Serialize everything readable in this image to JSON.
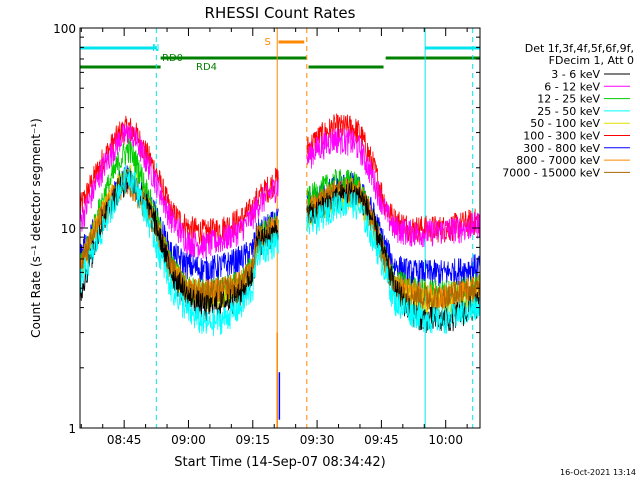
{
  "chart_data": {
    "type": "line",
    "title": "RHESSI Count Rates",
    "xlabel": "Start Time (14-Sep-07 08:34:42)",
    "ylabel": "Count Rate (s⁻¹ detector segment⁻¹)",
    "ylog": true,
    "ylim": [
      1,
      100
    ],
    "xlim_minutes": [
      34.7,
      128
    ],
    "x_ticks": [
      {
        "label": "08:45",
        "minute": 45
      },
      {
        "label": "09:00",
        "minute": 60
      },
      {
        "label": "09:15",
        "minute": 75
      },
      {
        "label": "09:30",
        "minute": 90
      },
      {
        "label": "09:45",
        "minute": 105
      },
      {
        "label": "10:00",
        "minute": 120
      }
    ],
    "y_ticks": [
      {
        "label": "1",
        "value": 1
      },
      {
        "label": "10",
        "value": 10
      },
      {
        "label": "100",
        "value": 100
      }
    ],
    "legend": {
      "position": "right",
      "header": [
        "Det 1f,3f,4f,5f,6f,9f,",
        "FDecim 1, Att 0"
      ],
      "entries": [
        {
          "label": "3 - 6 keV",
          "color": "#000000"
        },
        {
          "label": "6 - 12 keV",
          "color": "#ff00ff"
        },
        {
          "label": "12 - 25 keV",
          "color": "#00cc00"
        },
        {
          "label": "25 - 50 keV",
          "color": "#00ffff"
        },
        {
          "label": "50 - 100 keV",
          "color": "#e0e000"
        },
        {
          "label": "100 - 300 keV",
          "color": "#ff0000"
        },
        {
          "label": "300 - 800 keV",
          "color": "#0000ff"
        },
        {
          "label": "800 - 7000 keV",
          "color": "#ff8800"
        },
        {
          "label": "7000 - 15000 keV",
          "color": "#aa6600"
        }
      ]
    },
    "series": [
      {
        "name": "3 - 6 keV",
        "color": "#000000",
        "x": [
          35,
          40,
          44,
          46,
          48,
          52,
          56,
          60,
          64,
          68,
          72,
          75,
          76,
          90,
          94,
          98,
          100,
          103,
          106,
          108,
          112,
          116,
          120,
          124,
          128
        ],
        "y": [
          5,
          11,
          16,
          18,
          16,
          11,
          6,
          4.5,
          4,
          4.2,
          4.6,
          5.8,
          8.5,
          12,
          14,
          15,
          14.5,
          11,
          7,
          5,
          3.8,
          3.5,
          3.5,
          3.8,
          4.2
        ]
      },
      {
        "name": "6 - 12 keV",
        "color": "#ff00ff",
        "x": [
          35,
          40,
          44,
          46,
          48,
          52,
          56,
          60,
          64,
          68,
          72,
          75,
          76,
          90,
          94,
          98,
          100,
          103,
          106,
          108,
          112,
          116,
          120,
          124,
          128
        ],
        "y": [
          11,
          20,
          28,
          30,
          27,
          18,
          11,
          8.5,
          8.2,
          8.8,
          9.8,
          11.5,
          13,
          25,
          28,
          27,
          25,
          18,
          12,
          10,
          9.5,
          9.5,
          9.8,
          10,
          10.5
        ]
      },
      {
        "name": "12 - 25 keV",
        "color": "#00cc00",
        "x": [
          35,
          40,
          44,
          46,
          48,
          52,
          56,
          60,
          64,
          68,
          72,
          75,
          76,
          90,
          94,
          98,
          100,
          103,
          106,
          108,
          112,
          116,
          120,
          124,
          128
        ],
        "y": [
          6.5,
          14,
          22,
          25,
          21,
          12,
          6.5,
          5,
          4.8,
          5,
          5.3,
          6.5,
          9,
          15,
          17,
          17,
          16,
          11,
          7,
          5.5,
          5,
          4.8,
          4.8,
          5,
          5.2
        ]
      },
      {
        "name": "25 - 50 keV",
        "color": "#00ffff",
        "x": [
          35,
          40,
          44,
          46,
          48,
          52,
          56,
          60,
          64,
          68,
          72,
          75,
          76,
          90,
          94,
          98,
          100,
          103,
          106,
          108,
          112,
          116,
          120,
          124,
          128
        ],
        "y": [
          5.5,
          10,
          16,
          19,
          16,
          9,
          5,
          3.8,
          3.3,
          3.5,
          4,
          5,
          7.5,
          11,
          13,
          13.5,
          12.5,
          9,
          6,
          4.3,
          3.8,
          3.5,
          3.5,
          3.8,
          4
        ]
      },
      {
        "name": "50 - 100 keV",
        "color": "#e0e000",
        "x": [
          35,
          40,
          44,
          46,
          48,
          52,
          56,
          60,
          64,
          68,
          72,
          75,
          76,
          90,
          94,
          98,
          100,
          103,
          106,
          108,
          112,
          116,
          120,
          124,
          128
        ],
        "y": [
          6.5,
          12,
          17,
          19,
          16,
          11,
          6,
          4.8,
          4.5,
          4.7,
          5,
          6,
          8.5,
          12.5,
          14,
          14.5,
          14,
          10.5,
          6.5,
          5,
          4.5,
          4.3,
          4.3,
          4.5,
          4.8
        ]
      },
      {
        "name": "100 - 300 keV",
        "color": "#ff0000",
        "x": [
          35,
          40,
          44,
          46,
          48,
          52,
          56,
          60,
          64,
          68,
          72,
          75,
          76,
          90,
          94,
          98,
          100,
          103,
          106,
          108,
          112,
          116,
          120,
          124,
          128
        ],
        "y": [
          13,
          22,
          30,
          32,
          29,
          20,
          12,
          10,
          9.5,
          10,
          11,
          12.5,
          14,
          28,
          32,
          32,
          30,
          21,
          13,
          11,
          10,
          10,
          10,
          10.5,
          11
        ]
      },
      {
        "name": "300 - 800 keV",
        "color": "#0000ff",
        "x": [
          35,
          40,
          44,
          46,
          48,
          52,
          56,
          60,
          64,
          68,
          72,
          75,
          76,
          90,
          94,
          98,
          100,
          103,
          106,
          108,
          112,
          116,
          120,
          124,
          128
        ],
        "y": [
          7.5,
          12,
          17,
          18,
          16,
          12,
          7.5,
          6.5,
          6.2,
          6.5,
          7,
          7.8,
          9.5,
          14,
          16,
          16.5,
          15.5,
          12,
          8,
          6.5,
          6,
          6,
          6,
          6.2,
          6.5
        ]
      },
      {
        "name": "800 - 7000 keV",
        "color": "#ff8800",
        "x": [
          35,
          40,
          44,
          46,
          48,
          52,
          56,
          60,
          64,
          68,
          72,
          75,
          76,
          90,
          94,
          98,
          100,
          103,
          106,
          108,
          112,
          116,
          120,
          124,
          128
        ],
        "y": [
          6.8,
          12,
          16.5,
          18,
          15.5,
          11,
          6.3,
          5,
          4.8,
          5,
          5.3,
          6.3,
          9,
          13,
          15,
          15.5,
          15,
          11,
          6.8,
          5.2,
          4.8,
          4.6,
          4.6,
          4.8,
          5.1
        ]
      },
      {
        "name": "7000 - 15000 keV",
        "color": "#aa6600",
        "x": [
          35,
          40,
          44,
          46,
          48,
          52,
          56,
          60,
          64,
          68,
          72,
          75,
          76,
          90,
          94,
          98,
          100,
          103,
          106,
          108,
          112,
          116,
          120,
          124,
          128
        ],
        "y": [
          6.6,
          11.5,
          16,
          17.5,
          15,
          10.8,
          6.2,
          4.9,
          4.7,
          4.9,
          5.2,
          6.2,
          8.8,
          12.8,
          14.8,
          15.2,
          14.8,
          10.8,
          6.7,
          5.1,
          4.7,
          4.5,
          4.5,
          4.7,
          5.0
        ]
      }
    ],
    "flag_bars": [
      {
        "label": "N",
        "color": "#00e5ee",
        "level": 1,
        "segments": [
          [
            34.7,
            52.5
          ],
          [
            115.2,
            128
          ]
        ]
      },
      {
        "label": "RD0",
        "color": "#008000",
        "level": 2,
        "segments": [
          [
            53.5,
            87.5
          ],
          [
            106,
            128
          ]
        ]
      },
      {
        "label": "RD4",
        "color": "#008000",
        "level": 3,
        "segments": [
          [
            34.7,
            53.5
          ],
          [
            88,
            105.5
          ]
        ]
      },
      {
        "label": "S",
        "color": "#ff8800",
        "level": 0,
        "segments": [
          [
            81,
            87
          ]
        ]
      }
    ],
    "vertical_lines": [
      {
        "minute": 52.5,
        "color": "#00e5ee",
        "style": "dashed"
      },
      {
        "minute": 115.2,
        "color": "#00e5ee",
        "style": "solid"
      },
      {
        "minute": 126.3,
        "color": "#00e5ee",
        "style": "dashed"
      },
      {
        "minute": 80.7,
        "color": "#ff8800",
        "style": "solid"
      },
      {
        "minute": 87.6,
        "color": "#ff8800",
        "style": "dashed"
      }
    ],
    "gap": {
      "start": 81,
      "end": 87.6
    }
  },
  "timestamp": "16-Oct-2021 13:14"
}
